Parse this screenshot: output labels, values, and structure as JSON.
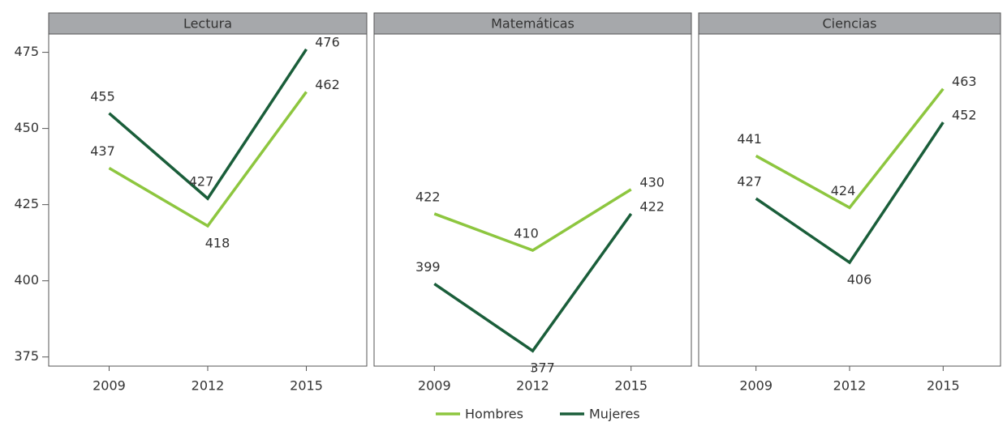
{
  "chart_data": {
    "type": "line",
    "categories": [
      "2009",
      "2012",
      "2015"
    ],
    "ylim": [
      372,
      481
    ],
    "yticks": [
      375,
      400,
      425,
      450,
      475
    ],
    "panels": [
      {
        "title": "Lectura",
        "series": [
          {
            "name": "Hombres",
            "color": "#8dc63f",
            "values": [
              437,
              418,
              462
            ]
          },
          {
            "name": "Mujeres",
            "color": "#1a5e3a",
            "values": [
              455,
              427,
              476
            ]
          }
        ]
      },
      {
        "title": "Matemáticas",
        "series": [
          {
            "name": "Hombres",
            "color": "#8dc63f",
            "values": [
              422,
              410,
              430
            ]
          },
          {
            "name": "Mujeres",
            "color": "#1a5e3a",
            "values": [
              399,
              377,
              422
            ]
          }
        ]
      },
      {
        "title": "Ciencias",
        "series": [
          {
            "name": "Hombres",
            "color": "#8dc63f",
            "values": [
              441,
              424,
              463
            ]
          },
          {
            "name": "Mujeres",
            "color": "#1a5e3a",
            "values": [
              427,
              406,
              452
            ]
          }
        ]
      }
    ]
  }
}
